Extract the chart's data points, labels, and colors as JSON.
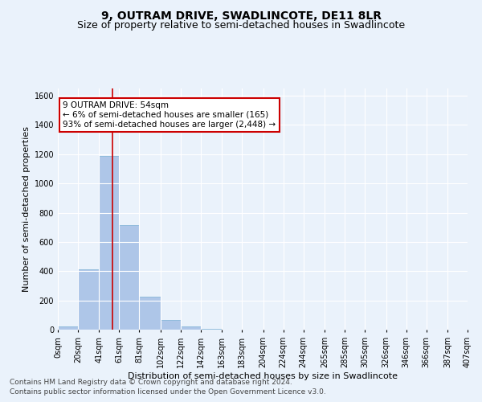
{
  "title": "9, OUTRAM DRIVE, SWADLINCOTE, DE11 8LR",
  "subtitle": "Size of property relative to semi-detached houses in Swadlincote",
  "xlabel": "Distribution of semi-detached houses by size in Swadlincote",
  "ylabel": "Number of semi-detached properties",
  "footer_line1": "Contains HM Land Registry data © Crown copyright and database right 2024.",
  "footer_line2": "Contains public sector information licensed under the Open Government Licence v3.0.",
  "annotation_title": "9 OUTRAM DRIVE: 54sqm",
  "annotation_line1": "← 6% of semi-detached houses are smaller (165)",
  "annotation_line2": "93% of semi-detached houses are larger (2,448) →",
  "property_size": 54,
  "bin_edges": [
    0,
    20,
    41,
    61,
    81,
    102,
    122,
    142,
    163,
    183,
    204,
    224,
    244,
    265,
    285,
    305,
    326,
    346,
    366,
    387,
    407
  ],
  "bar_heights": [
    20,
    410,
    1190,
    715,
    225,
    65,
    20,
    5,
    0,
    0,
    0,
    0,
    0,
    0,
    0,
    0,
    0,
    0,
    0,
    0
  ],
  "bar_color": "#aec6e8",
  "bar_edge_color": "#7aafd4",
  "vline_color": "#cc0000",
  "vline_x": 54,
  "ylim": [
    0,
    1650
  ],
  "yticks": [
    0,
    200,
    400,
    600,
    800,
    1000,
    1200,
    1400,
    1600
  ],
  "background_color": "#eaf2fb",
  "grid_color": "#ffffff",
  "annotation_box_color": "#ffffff",
  "annotation_border_color": "#cc0000",
  "title_fontsize": 10,
  "subtitle_fontsize": 9,
  "axis_label_fontsize": 8,
  "tick_fontsize": 7,
  "annotation_fontsize": 7.5,
  "footer_fontsize": 6.5
}
